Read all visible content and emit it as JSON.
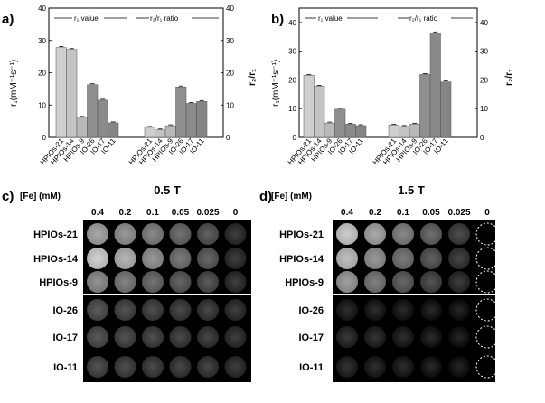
{
  "panels": [
    {
      "label": "a)",
      "legend_left": "r₁ value",
      "legend_right": "r₂/r₁ ratio",
      "ylabel_left": "r₁(mM⁻¹s⁻¹)",
      "ylabel_right": "r₂/r₁",
      "yticks": [
        "0",
        "10",
        "20",
        "30",
        "40"
      ]
    },
    {
      "label": "b)",
      "legend_left": "r₁ value",
      "legend_right": "r₂/r₁ ratio",
      "ylabel_left": "r₁(mM⁻¹s⁻¹)",
      "ylabel_right": "r₂/r₁",
      "yticks": [
        "0",
        "10",
        "20",
        "30",
        "40"
      ]
    }
  ],
  "chart_data": [
    {
      "type": "bar",
      "categories": [
        "HPIOs-21",
        "HPIOs-14",
        "HPIOs-9",
        "IO-26",
        "IO-17",
        "IO-11"
      ],
      "ylim": [
        0,
        40
      ],
      "series": [
        {
          "values": [
            27.8,
            27.2,
            6.2,
            16.3,
            11.5,
            4.5
          ]
        },
        {
          "values": [
            3.1,
            2.3,
            3.6,
            15.6,
            10.5,
            11.1
          ]
        }
      ],
      "colors": [
        "#cfcfcf",
        "#c4c4c4",
        "#b9b9b9",
        "#8f8f8f",
        "#8a8a8a",
        "#858585"
      ]
    },
    {
      "type": "bar",
      "categories": [
        "HPIOs-21",
        "HPIOs-14",
        "HPIOs-9",
        "IO-26",
        "IO-17",
        "IO-11"
      ],
      "ylim": [
        0,
        45
      ],
      "yticks": [
        0,
        10,
        20,
        30,
        40
      ],
      "series": [
        {
          "values": [
            21.6,
            17.8,
            5.0,
            9.8,
            4.6,
            4.1
          ]
        },
        {
          "values": [
            4.3,
            3.8,
            4.6,
            21.9,
            36.4,
            19.3
          ]
        }
      ],
      "colors": [
        "#cfcfcf",
        "#c4c4c4",
        "#b9b9b9",
        "#8f8f8f",
        "#8a8a8a",
        "#858585"
      ]
    }
  ],
  "phantoms": [
    {
      "label": "c)",
      "field": "0.5 T",
      "fe_label": "[Fe] (mM)",
      "concentrations": [
        "0.4",
        "0.2",
        "0.1",
        "0.05",
        "0.025",
        "0"
      ],
      "rows": [
        "HPIOs-21",
        "HPIOs-14",
        "HPIOs-9",
        "IO-26",
        "IO-17",
        "IO-11"
      ],
      "intensity": [
        [
          0.62,
          0.55,
          0.48,
          0.38,
          0.3,
          0.15
        ],
        [
          0.8,
          0.68,
          0.55,
          0.42,
          0.33,
          0.15
        ],
        [
          0.52,
          0.45,
          0.38,
          0.32,
          0.27,
          0.15
        ],
        [
          0.28,
          0.24,
          0.22,
          0.2,
          0.19,
          0.15
        ],
        [
          0.27,
          0.24,
          0.22,
          0.2,
          0.18,
          0.15
        ],
        [
          0.24,
          0.22,
          0.2,
          0.19,
          0.18,
          0.15
        ]
      ],
      "dashed_last": false
    },
    {
      "label": "d)",
      "field": "1.5 T",
      "fe_label": "[Fe] (mM)",
      "concentrations": [
        "0.4",
        "0.2",
        "0.1",
        "0.05",
        "0.025",
        "0"
      ],
      "rows": [
        "HPIOs-21",
        "HPIOs-14",
        "HPIOs-9",
        "IO-26",
        "IO-17",
        "IO-11"
      ],
      "intensity": [
        [
          0.78,
          0.62,
          0.48,
          0.36,
          0.22,
          0.02
        ],
        [
          0.72,
          0.55,
          0.42,
          0.3,
          0.18,
          0.02
        ],
        [
          0.58,
          0.44,
          0.33,
          0.24,
          0.14,
          0.02
        ],
        [
          0.08,
          0.07,
          0.06,
          0.05,
          0.04,
          0.02
        ],
        [
          0.12,
          0.1,
          0.08,
          0.06,
          0.04,
          0.02
        ],
        [
          0.1,
          0.08,
          0.07,
          0.05,
          0.04,
          0.02
        ]
      ],
      "dashed_last": true
    }
  ]
}
